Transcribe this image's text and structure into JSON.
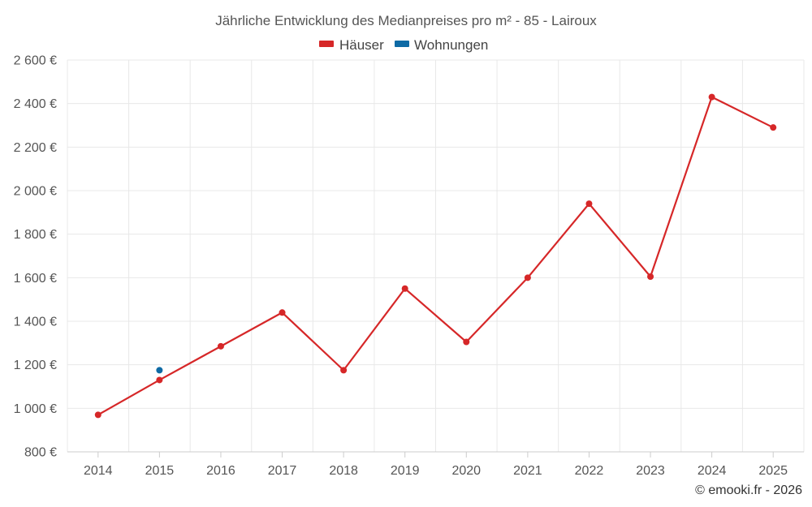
{
  "chart_data": {
    "type": "line",
    "title": "Jährliche Entwicklung des Medianpreises pro m² - 85 - Lairoux",
    "categories": [
      "2014",
      "2015",
      "2016",
      "2017",
      "2018",
      "2019",
      "2020",
      "2021",
      "2022",
      "2023",
      "2024",
      "2025"
    ],
    "series": [
      {
        "name": "Häuser",
        "color": "#d62728",
        "values": [
          970,
          1130,
          1285,
          1440,
          1175,
          1550,
          1305,
          1600,
          1940,
          1605,
          2430,
          2290
        ]
      },
      {
        "name": "Wohnungen",
        "color": "#0e6aa5",
        "values": [
          null,
          1175,
          null,
          null,
          null,
          null,
          null,
          null,
          null,
          null,
          null,
          null
        ]
      }
    ],
    "ylim": [
      800,
      2600
    ],
    "yticks": [
      "800 €",
      "1 000 €",
      "1 200 €",
      "1 400 €",
      "1 600 €",
      "1 800 €",
      "2 000 €",
      "2 200 €",
      "2 400 €",
      "2 600 €"
    ],
    "ytick_values": [
      800,
      1000,
      1200,
      1400,
      1600,
      1800,
      2000,
      2200,
      2400,
      2600
    ],
    "xlabel": "",
    "ylabel": "",
    "legend_position": "top-center",
    "grid": true
  },
  "credit": "© emooki.fr - 2026"
}
